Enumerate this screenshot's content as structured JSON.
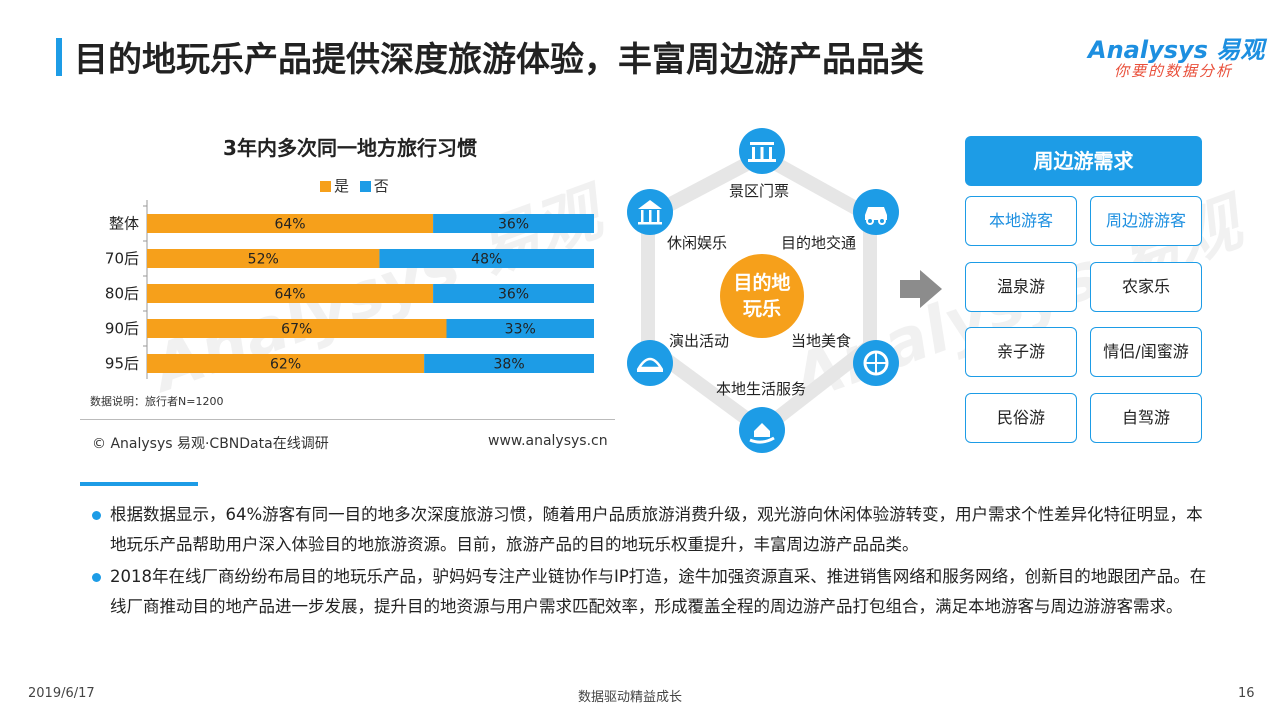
{
  "header": {
    "title": "目的地玩乐产品提供深度旅游体验，丰富周边游产品品类",
    "logo_main": "Analysys 易观",
    "logo_sub": "你要的数据分析"
  },
  "colors": {
    "accent": "#1d9ce6",
    "yes": "#f6a01b",
    "no": "#1d9ce6",
    "center": "#f6a01b",
    "arrow": "#8c8c8c"
  },
  "chart_data": {
    "type": "bar",
    "orientation": "horizontal",
    "stacked": true,
    "title": "3年内多次同一地方旅行习惯",
    "categories": [
      "整体",
      "70后",
      "80后",
      "90后",
      "95后"
    ],
    "series": [
      {
        "name": "是",
        "values": [
          64,
          52,
          64,
          67,
          62
        ],
        "labels": [
          "64%",
          "52%",
          "64%",
          "67%",
          "62%"
        ]
      },
      {
        "name": "否",
        "values": [
          36,
          48,
          36,
          33,
          38
        ],
        "labels": [
          "36%",
          "48%",
          "36%",
          "33%",
          "38%"
        ]
      }
    ],
    "xlim": [
      0,
      100
    ],
    "grid": false,
    "legend": "top",
    "note": "数据说明：旅行者N=1200"
  },
  "chart_footer": {
    "copyright": "© Analysys 易观·CBNData在线调研",
    "site": "www.analysys.cn"
  },
  "diagram": {
    "center": "目的地玩乐",
    "nodes": [
      {
        "label": "景区门票",
        "icon": "ticket-gate-icon"
      },
      {
        "label": "目的地交通",
        "icon": "car-icon"
      },
      {
        "label": "当地美食",
        "icon": "pizza-icon"
      },
      {
        "label": "本地生活服务",
        "icon": "hand-house-icon"
      },
      {
        "label": "演出活动",
        "icon": "stage-icon"
      },
      {
        "label": "休闲娱乐",
        "icon": "carousel-icon"
      }
    ]
  },
  "demand": {
    "title": "周边游需求",
    "items": [
      "本地游客",
      "周边游游客",
      "温泉游",
      "农家乐",
      "亲子游",
      "情侣/闺蜜游",
      "民俗游",
      "自驾游"
    ]
  },
  "bullets": [
    "根据数据显示，64%游客有同一目的地多次深度旅游习惯，随着用户品质旅游消费升级，观光游向休闲体验游转变，用户需求个性差异化特征明显，本地玩乐产品帮助用户深入体验目的地旅游资源。目前，旅游产品的目的地玩乐权重提升，丰富周边游产品品类。",
    "2018年在线厂商纷纷布局目的地玩乐产品，驴妈妈专注产业链协作与IP打造，途牛加强资源直采、推进销售网络和服务网络，创新目的地跟团产品。在线厂商推动目的地产品进一步发展，提升目的地资源与用户需求匹配效率，形成覆盖全程的周边游产品打包组合，满足本地游客与周边游游客需求。"
  ],
  "footer": {
    "date": "2019/6/17",
    "slogan": "数据驱动精益成长",
    "page": "16"
  }
}
